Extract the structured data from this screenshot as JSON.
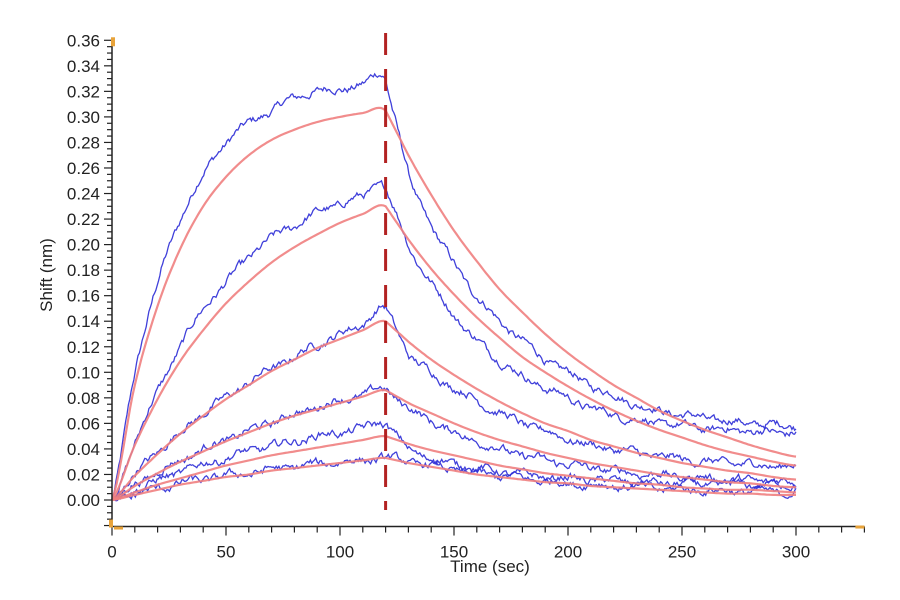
{
  "chart_data": {
    "type": "line",
    "title": "",
    "xlabel": "Time (sec)",
    "ylabel": "Shift (nm)",
    "xlim": [
      0,
      330
    ],
    "ylim": [
      -0.02,
      0.36
    ],
    "x_ticks": [
      "0",
      "50",
      "100",
      "150",
      "200",
      "250",
      "300"
    ],
    "x_tick_values": [
      0,
      50,
      100,
      150,
      200,
      250,
      300
    ],
    "y_ticks": [
      "0.00",
      "0.02",
      "0.04",
      "0.06",
      "0.08",
      "0.10",
      "0.12",
      "0.14",
      "0.16",
      "0.18",
      "0.20",
      "0.22",
      "0.24",
      "0.26",
      "0.28",
      "0.30",
      "0.32",
      "0.34",
      "0.36"
    ],
    "y_tick_values": [
      0,
      0.02,
      0.04,
      0.06,
      0.08,
      0.1,
      0.12,
      0.14,
      0.16,
      0.18,
      0.2,
      0.22,
      0.24,
      0.26,
      0.28,
      0.3,
      0.32,
      0.34,
      0.36
    ],
    "grid": false,
    "annotations": [
      {
        "type": "vertical-dashed-line",
        "x": 120,
        "color": "#b22222"
      }
    ],
    "x": [
      0,
      10,
      20,
      30,
      40,
      50,
      60,
      70,
      80,
      90,
      100,
      110,
      120,
      130,
      140,
      150,
      160,
      170,
      180,
      190,
      200,
      210,
      220,
      230,
      240,
      250,
      260,
      270,
      280,
      290,
      300
    ],
    "series": [
      {
        "name": "measured-1",
        "kind": "data",
        "color": "#2b2bd6",
        "values": [
          0,
          0.1,
          0.17,
          0.22,
          0.255,
          0.28,
          0.295,
          0.305,
          0.315,
          0.32,
          0.322,
          0.325,
          0.33,
          0.255,
          0.215,
          0.185,
          0.16,
          0.14,
          0.125,
          0.11,
          0.1,
          0.09,
          0.082,
          0.075,
          0.07,
          0.067,
          0.064,
          0.062,
          0.06,
          0.059,
          0.058
        ]
      },
      {
        "name": "measured-2",
        "kind": "data",
        "color": "#2b2bd6",
        "values": [
          0,
          0.045,
          0.085,
          0.12,
          0.15,
          0.17,
          0.19,
          0.205,
          0.215,
          0.225,
          0.232,
          0.238,
          0.245,
          0.2,
          0.17,
          0.145,
          0.125,
          0.11,
          0.097,
          0.088,
          0.08,
          0.072,
          0.067,
          0.063,
          0.06,
          0.058,
          0.056,
          0.055,
          0.054,
          0.053,
          0.053
        ]
      },
      {
        "name": "measured-3",
        "kind": "data",
        "color": "#2b2bd6",
        "values": [
          0,
          0.02,
          0.038,
          0.053,
          0.068,
          0.08,
          0.092,
          0.103,
          0.112,
          0.122,
          0.13,
          0.138,
          0.15,
          0.115,
          0.1,
          0.088,
          0.078,
          0.068,
          0.06,
          0.054,
          0.048,
          0.043,
          0.04,
          0.037,
          0.034,
          0.032,
          0.03,
          0.029,
          0.028,
          0.027,
          0.027
        ]
      },
      {
        "name": "measured-4",
        "kind": "data",
        "color": "#2b2bd6",
        "values": [
          0,
          0.012,
          0.022,
          0.031,
          0.04,
          0.047,
          0.054,
          0.061,
          0.067,
          0.073,
          0.078,
          0.082,
          0.087,
          0.072,
          0.062,
          0.053,
          0.046,
          0.04,
          0.035,
          0.031,
          0.028,
          0.025,
          0.023,
          0.021,
          0.02,
          0.018,
          0.017,
          0.016,
          0.015,
          0.015,
          0.014
        ]
      },
      {
        "name": "measured-5",
        "kind": "data",
        "color": "#2b2bd6",
        "values": [
          0,
          0.008,
          0.015,
          0.022,
          0.028,
          0.033,
          0.038,
          0.042,
          0.046,
          0.05,
          0.053,
          0.056,
          0.06,
          0.04,
          0.033,
          0.028,
          0.025,
          0.022,
          0.02,
          0.018,
          0.017,
          0.016,
          0.015,
          0.014,
          0.013,
          0.013,
          0.012,
          0.012,
          0.012,
          0.012,
          0.012
        ]
      },
      {
        "name": "measured-6",
        "kind": "data",
        "color": "#2b2bd6",
        "values": [
          0,
          0.004,
          0.009,
          0.013,
          0.016,
          0.019,
          0.021,
          0.024,
          0.026,
          0.028,
          0.03,
          0.031,
          0.033,
          0.03,
          0.027,
          0.024,
          0.021,
          0.019,
          0.017,
          0.015,
          0.013,
          0.012,
          0.011,
          0.01,
          0.009,
          0.008,
          0.008,
          0.007,
          0.007,
          0.006,
          0.006
        ]
      },
      {
        "name": "fit-1",
        "kind": "fit",
        "color": "#f08080",
        "values": [
          0,
          0.09,
          0.152,
          0.197,
          0.23,
          0.253,
          0.27,
          0.282,
          0.29,
          0.296,
          0.3,
          0.303,
          0.305,
          0.27,
          0.239,
          0.211,
          0.187,
          0.165,
          0.147,
          0.13,
          0.115,
          0.102,
          0.09,
          0.08,
          0.07,
          0.062,
          0.055,
          0.049,
          0.043,
          0.038,
          0.034
        ]
      },
      {
        "name": "fit-2",
        "kind": "fit",
        "color": "#f08080",
        "values": [
          0,
          0.043,
          0.079,
          0.109,
          0.133,
          0.154,
          0.171,
          0.186,
          0.198,
          0.208,
          0.217,
          0.224,
          0.23,
          0.204,
          0.181,
          0.161,
          0.143,
          0.127,
          0.112,
          0.1,
          0.089,
          0.079,
          0.07,
          0.062,
          0.055,
          0.049,
          0.043,
          0.038,
          0.034,
          0.03,
          0.027
        ]
      },
      {
        "name": "fit-3",
        "kind": "fit",
        "color": "#f08080",
        "values": [
          0,
          0.019,
          0.036,
          0.052,
          0.066,
          0.079,
          0.09,
          0.101,
          0.11,
          0.119,
          0.126,
          0.133,
          0.14,
          0.124,
          0.11,
          0.098,
          0.087,
          0.077,
          0.068,
          0.06,
          0.054,
          0.047,
          0.042,
          0.037,
          0.033,
          0.029,
          0.026,
          0.023,
          0.021,
          0.018,
          0.016
        ]
      },
      {
        "name": "fit-4",
        "kind": "fit",
        "color": "#f08080",
        "values": [
          0,
          0.011,
          0.021,
          0.03,
          0.038,
          0.046,
          0.053,
          0.06,
          0.066,
          0.071,
          0.076,
          0.081,
          0.086,
          0.076,
          0.068,
          0.06,
          0.053,
          0.047,
          0.042,
          0.037,
          0.033,
          0.029,
          0.026,
          0.023,
          0.02,
          0.018,
          0.016,
          0.014,
          0.013,
          0.011,
          0.01
        ]
      },
      {
        "name": "fit-5",
        "kind": "fit",
        "color": "#f08080",
        "values": [
          0,
          0.006,
          0.012,
          0.017,
          0.022,
          0.027,
          0.031,
          0.035,
          0.038,
          0.041,
          0.044,
          0.047,
          0.05,
          0.044,
          0.039,
          0.035,
          0.031,
          0.027,
          0.024,
          0.021,
          0.019,
          0.017,
          0.015,
          0.013,
          0.012,
          0.01,
          0.009,
          0.008,
          0.008,
          0.007,
          0.006
        ]
      },
      {
        "name": "fit-6",
        "kind": "fit",
        "color": "#f08080",
        "values": [
          0,
          0.004,
          0.008,
          0.012,
          0.015,
          0.018,
          0.02,
          0.023,
          0.025,
          0.027,
          0.029,
          0.031,
          0.033,
          0.029,
          0.026,
          0.023,
          0.02,
          0.018,
          0.016,
          0.014,
          0.013,
          0.011,
          0.01,
          0.009,
          0.008,
          0.007,
          0.006,
          0.005,
          0.005,
          0.004,
          0.004
        ]
      }
    ]
  }
}
